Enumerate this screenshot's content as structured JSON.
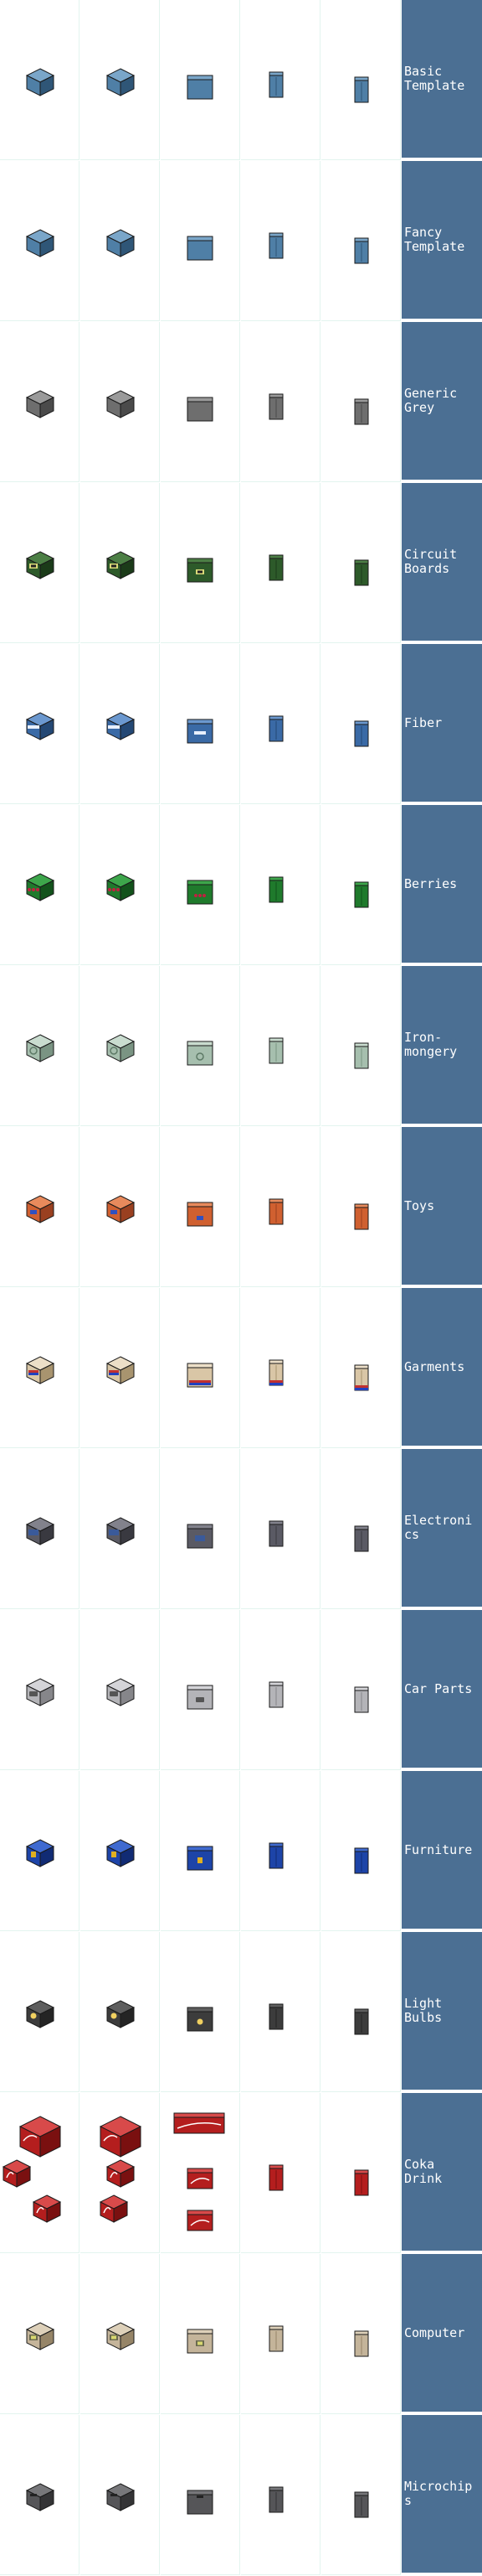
{
  "sheet": {
    "columns": [
      "iso-left",
      "iso-right",
      "front",
      "side-narrow",
      "side"
    ],
    "rows": [
      {
        "id": "basic-template",
        "label": "Basic\nTemplate",
        "body": "#4f7fa6",
        "top": "#7aa6c9",
        "dark": "#2f5677",
        "decal": "none"
      },
      {
        "id": "fancy-template",
        "label": "Fancy\nTemplate",
        "body": "#4f7fa6",
        "top": "#7aa6c9",
        "dark": "#2f5677",
        "decal": "none"
      },
      {
        "id": "generic-grey",
        "label": "Generic\nGrey",
        "body": "#6e6e6e",
        "top": "#9a9a9a",
        "dark": "#4a4a4a",
        "decal": "none"
      },
      {
        "id": "circuit-boards",
        "label": "Circuit\nBoards",
        "body": "#2d5a2a",
        "top": "#4c7f45",
        "dark": "#1b3b19",
        "decal": "chip"
      },
      {
        "id": "fiber",
        "label": "Fiber",
        "body": "#3a6aa6",
        "top": "#6b98cf",
        "dark": "#244874",
        "decal": "stripe"
      },
      {
        "id": "berries",
        "label": "Berries",
        "body": "#1f7a2c",
        "top": "#3da64b",
        "dark": "#12521b",
        "decal": "berries"
      },
      {
        "id": "ironmongery",
        "label": "Iron-\nmongery",
        "body": "#a6bfae",
        "top": "#c9dccf",
        "dark": "#7a9483",
        "decal": "ring"
      },
      {
        "id": "toys",
        "label": "Toys",
        "body": "#d06030",
        "top": "#e88a5c",
        "dark": "#9a4020",
        "decal": "toy"
      },
      {
        "id": "garments",
        "label": "Garments",
        "body": "#d9c6a6",
        "top": "#ecdfc8",
        "dark": "#a8946f",
        "decal": "garment"
      },
      {
        "id": "electronics",
        "label": "Electronics",
        "body": "#5a5a64",
        "top": "#82828c",
        "dark": "#393940",
        "decal": "screen"
      },
      {
        "id": "car-parts",
        "label": "Car Parts",
        "body": "#b4b4b8",
        "top": "#d4d4d8",
        "dark": "#86868a",
        "decal": "part"
      },
      {
        "id": "furniture",
        "label": "Furniture",
        "body": "#1d44a8",
        "top": "#3f6ad0",
        "dark": "#112b74",
        "decal": "chair"
      },
      {
        "id": "light-bulbs",
        "label": "Light\nBulbs",
        "body": "#3c3c3c",
        "top": "#5e5e5e",
        "dark": "#242424",
        "decal": "bulb"
      },
      {
        "id": "coka-drink",
        "label": "Coka\nDrink",
        "body": "#b41e1e",
        "top": "#d84a4a",
        "dark": "#7a1010",
        "decal": "swoosh"
      },
      {
        "id": "computer",
        "label": "Computer",
        "body": "#c4b49a",
        "top": "#ddd0b9",
        "dark": "#968568",
        "decal": "computer"
      },
      {
        "id": "microchips",
        "label": "Microchips",
        "body": "#555558",
        "top": "#77777a",
        "dark": "#343436",
        "decal": "notch"
      }
    ]
  }
}
